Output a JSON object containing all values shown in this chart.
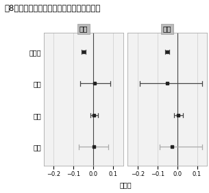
{
  "title": "図8　主観的健康（結果変数）と介護の関連",
  "panels": [
    "女性",
    "男性"
  ],
  "variables": [
    "年齢",
    "就業",
    "収入",
    "介護有"
  ],
  "xlabel": "推定値",
  "xlim": [
    -0.25,
    0.15
  ],
  "xticks": [
    -0.2,
    -0.1,
    0.0,
    0.1
  ],
  "female": {
    "estimates": [
      -0.05,
      0.005,
      0.002,
      0.003
    ],
    "ci_low": [
      -0.06,
      -0.065,
      -0.015,
      -0.075
    ],
    "ci_high": [
      -0.04,
      0.085,
      0.022,
      0.075
    ]
  },
  "male": {
    "estimates": [
      -0.05,
      -0.05,
      0.005,
      -0.025
    ],
    "ci_low": [
      -0.06,
      -0.19,
      -0.015,
      -0.09
    ],
    "ci_high": [
      -0.04,
      0.125,
      0.028,
      0.125
    ]
  },
  "ci_colors": [
    "#444444",
    "#444444",
    "#444444",
    "#aaaaaa"
  ],
  "point_color": "#222222",
  "panel_header_bg": "#bbbbbb",
  "panel_bg": "#f2f2f2",
  "grid_color": "#cccccc",
  "vline_color": "#444444",
  "title_fontsize": 8.5,
  "label_fontsize": 7,
  "tick_fontsize": 6,
  "header_fontsize": 7.5
}
